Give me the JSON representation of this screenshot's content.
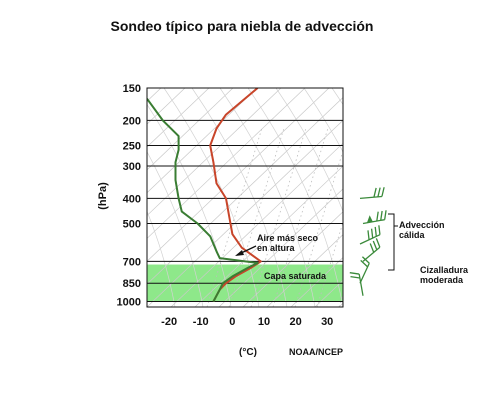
{
  "chart_data": {
    "type": "line",
    "title": "Sondeo típico para niebla de advección",
    "ylabel": "(hPa)",
    "xlabel": "(°C)",
    "source": "NOAA/NCEP",
    "y_scale": "log",
    "y_reversed": true,
    "ylim": [
      1050,
      150
    ],
    "xlim": [
      -27,
      35
    ],
    "y_ticks": [
      150,
      200,
      250,
      300,
      400,
      500,
      700,
      850,
      1000
    ],
    "x_ticks": [
      -20,
      -10,
      0,
      10,
      20,
      30
    ],
    "saturated_layer": [
      720,
      1000
    ],
    "series": [
      {
        "color": "#c8452a",
        "points": [
          [
            8,
            150
          ],
          [
            -2,
            190
          ],
          [
            -5,
            215
          ],
          [
            -7,
            250
          ],
          [
            -6,
            290
          ],
          [
            -5,
            350
          ],
          [
            -2,
            400
          ],
          [
            -1,
            470
          ],
          [
            0,
            550
          ],
          [
            3,
            620
          ],
          [
            9,
            700
          ],
          [
            6,
            740
          ],
          [
            1,
            800
          ],
          [
            -2,
            850
          ],
          [
            -4,
            900
          ],
          [
            -5,
            950
          ],
          [
            -6,
            1000
          ]
        ]
      },
      {
        "color": "#3a7d33",
        "points": [
          [
            -27,
            165
          ],
          [
            -22,
            200
          ],
          [
            -17,
            230
          ],
          [
            -17,
            260
          ],
          [
            -18,
            290
          ],
          [
            -18,
            340
          ],
          [
            -17,
            400
          ],
          [
            -16,
            450
          ],
          [
            -11,
            500
          ],
          [
            -7,
            560
          ],
          [
            -5,
            640
          ],
          [
            -4,
            680
          ],
          [
            8,
            710
          ],
          [
            5,
            740
          ],
          [
            0,
            800
          ],
          [
            -3,
            850
          ],
          [
            -4,
            900
          ],
          [
            -5,
            950
          ],
          [
            -6,
            1000
          ]
        ]
      }
    ],
    "annotations": [
      {
        "text_lines": [
          "Aire más seco",
          "en altura"
        ],
        "arrow": true
      },
      {
        "text_lines": [
          "Capa saturada"
        ]
      },
      {
        "text_lines": [
          "Advección",
          "cálida"
        ]
      },
      {
        "text_lines": [
          "Cizalladura",
          "moderada"
        ]
      }
    ],
    "wind_barbs_pressures": [
      400,
      500,
      600,
      700,
      850,
      950
    ],
    "grid": true
  }
}
